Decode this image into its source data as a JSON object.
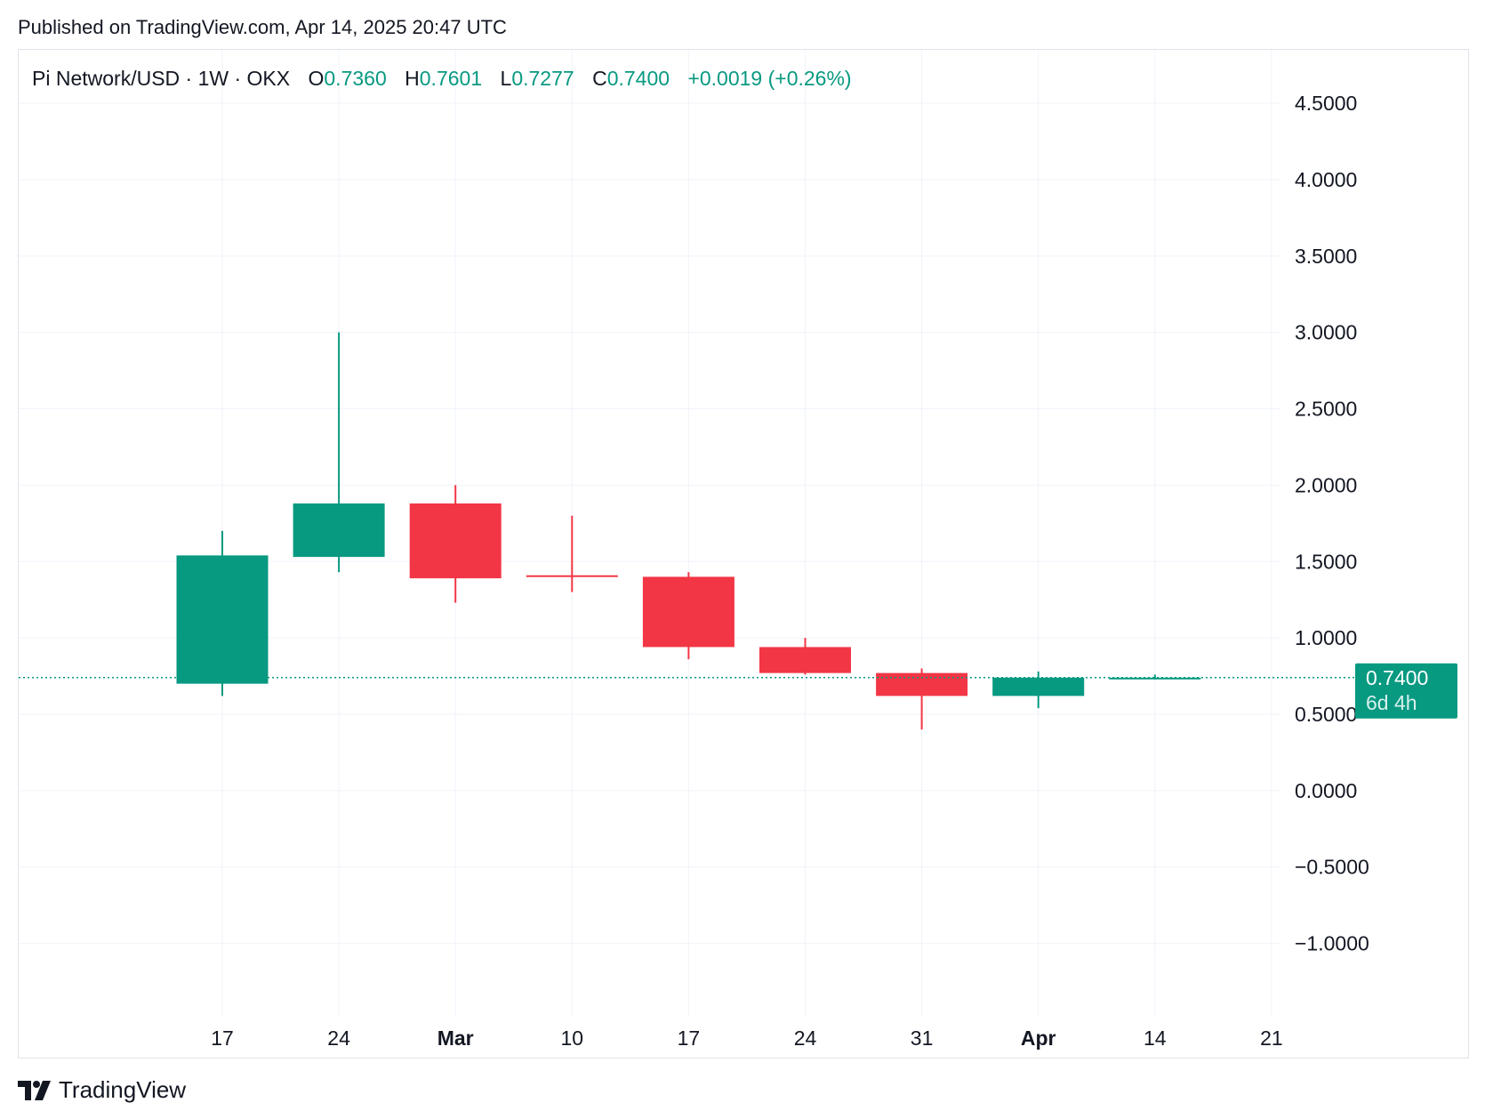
{
  "header": {
    "published": "Published on TradingView.com, Apr 14, 2025 20:47 UTC"
  },
  "legend": {
    "symbol": "Pi Network/USD · 1W · OKX",
    "o_label": "O",
    "o_value": "0.7360",
    "h_label": "H",
    "h_value": "0.7601",
    "l_label": "L",
    "l_value": "0.7277",
    "c_label": "C",
    "c_value": "0.7400",
    "change": "+0.0019 (+0.26%)"
  },
  "price_badge": {
    "price": "0.7400",
    "countdown": "6d 4h"
  },
  "brand": {
    "name": "TradingView"
  },
  "colors": {
    "up": "#089981",
    "down": "#f23645",
    "grid": "#f0f3fa",
    "text": "#131722"
  },
  "chart_data": {
    "type": "candlestick",
    "title": "Pi Network/USD · 1W · OKX",
    "x_ticks": [
      {
        "label": "17",
        "bold": false
      },
      {
        "label": "24",
        "bold": false
      },
      {
        "label": "Mar",
        "bold": true
      },
      {
        "label": "10",
        "bold": false
      },
      {
        "label": "17",
        "bold": false
      },
      {
        "label": "24",
        "bold": false
      },
      {
        "label": "31",
        "bold": false
      },
      {
        "label": "Apr",
        "bold": true
      },
      {
        "label": "14",
        "bold": false
      },
      {
        "label": "21",
        "bold": false
      }
    ],
    "y_ticks": [
      "4.5000",
      "4.0000",
      "3.5000",
      "3.0000",
      "2.5000",
      "2.0000",
      "1.5000",
      "1.0000",
      "0.5000",
      "0.0000",
      "−0.5000",
      "−1.0000"
    ],
    "y_tick_values": [
      4.5,
      4.0,
      3.5,
      3.0,
      2.5,
      2.0,
      1.5,
      1.0,
      0.5,
      0.0,
      -0.5,
      -1.0
    ],
    "ylim": [
      -1.48,
      4.85
    ],
    "last_price": 0.74,
    "candles": [
      {
        "week": "Feb 17",
        "open": 0.7,
        "high": 1.7,
        "low": 0.62,
        "close": 1.54
      },
      {
        "week": "Feb 24",
        "open": 1.53,
        "high": 3.0,
        "low": 1.43,
        "close": 1.88
      },
      {
        "week": "Mar 3",
        "open": 1.88,
        "high": 2.0,
        "low": 1.23,
        "close": 1.39
      },
      {
        "week": "Mar 10",
        "open": 1.41,
        "high": 1.8,
        "low": 1.3,
        "close": 1.4
      },
      {
        "week": "Mar 17",
        "open": 1.4,
        "high": 1.43,
        "low": 0.86,
        "close": 0.94
      },
      {
        "week": "Mar 24",
        "open": 0.94,
        "high": 1.0,
        "low": 0.76,
        "close": 0.77
      },
      {
        "week": "Mar 31",
        "open": 0.77,
        "high": 0.8,
        "low": 0.4,
        "close": 0.62
      },
      {
        "week": "Apr 7",
        "open": 0.62,
        "high": 0.78,
        "low": 0.54,
        "close": 0.74
      },
      {
        "week": "Apr 14",
        "open": 0.736,
        "high": 0.7601,
        "low": 0.7277,
        "close": 0.74
      }
    ]
  }
}
